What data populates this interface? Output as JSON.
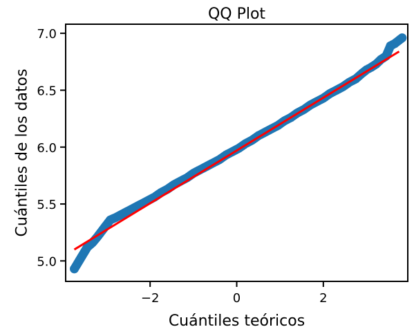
{
  "chart_data": {
    "type": "scatter",
    "title": "QQ Plot",
    "xlabel": "Cuántiles teóricos",
    "ylabel": "Cuántiles de los datos",
    "xlim": [
      -3.95,
      3.95
    ],
    "ylim": [
      4.82,
      7.08
    ],
    "xticks": [
      -2,
      0,
      2
    ],
    "xtick_labels": [
      "−2",
      "0",
      "2"
    ],
    "yticks": [
      5.0,
      5.5,
      6.0,
      6.5,
      7.0
    ],
    "ytick_labels": [
      "5.0",
      "5.5",
      "6.0",
      "6.5",
      "7.0"
    ],
    "grid": false,
    "colors": {
      "points": "#1f77b4",
      "fit_line": "#ff0000"
    },
    "fit_line": {
      "x": [
        -3.75,
        3.75
      ],
      "y": [
        5.1,
        6.84
      ]
    },
    "series": [
      {
        "values": [
          [
            -3.75,
            4.93
          ],
          [
            -3.45,
            5.12
          ],
          [
            -3.33,
            5.16
          ],
          [
            -3.22,
            5.21
          ],
          [
            -3.12,
            5.26
          ],
          [
            -3.02,
            5.31
          ],
          [
            -2.92,
            5.36
          ],
          [
            -2.8,
            5.38
          ],
          [
            -2.65,
            5.41
          ],
          [
            -2.5,
            5.44
          ],
          [
            -2.35,
            5.47
          ],
          [
            -2.2,
            5.5
          ],
          [
            -2.05,
            5.53
          ],
          [
            -1.9,
            5.56
          ],
          [
            -1.75,
            5.6
          ],
          [
            -1.6,
            5.63
          ],
          [
            -1.45,
            5.67
          ],
          [
            -1.3,
            5.7
          ],
          [
            -1.15,
            5.73
          ],
          [
            -1.0,
            5.77
          ],
          [
            -0.85,
            5.8
          ],
          [
            -0.7,
            5.83
          ],
          [
            -0.55,
            5.86
          ],
          [
            -0.4,
            5.89
          ],
          [
            -0.25,
            5.93
          ],
          [
            -0.1,
            5.96
          ],
          [
            0.05,
            5.99
          ],
          [
            0.2,
            6.03
          ],
          [
            0.35,
            6.06
          ],
          [
            0.5,
            6.1
          ],
          [
            0.65,
            6.13
          ],
          [
            0.8,
            6.16
          ],
          [
            0.95,
            6.19
          ],
          [
            1.1,
            6.23
          ],
          [
            1.25,
            6.26
          ],
          [
            1.4,
            6.3
          ],
          [
            1.55,
            6.33
          ],
          [
            1.7,
            6.37
          ],
          [
            1.85,
            6.4
          ],
          [
            2.0,
            6.43
          ],
          [
            2.15,
            6.47
          ],
          [
            2.3,
            6.5
          ],
          [
            2.45,
            6.53
          ],
          [
            2.6,
            6.57
          ],
          [
            2.75,
            6.6
          ],
          [
            2.9,
            6.65
          ],
          [
            3.0,
            6.68
          ],
          [
            3.1,
            6.7
          ],
          [
            3.22,
            6.73
          ],
          [
            3.33,
            6.77
          ],
          [
            3.45,
            6.8
          ],
          [
            3.55,
            6.89
          ],
          [
            3.65,
            6.91
          ],
          [
            3.82,
            6.96
          ]
        ]
      }
    ]
  }
}
